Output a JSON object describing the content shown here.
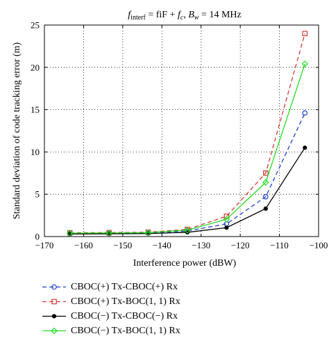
{
  "chart_data": {
    "type": "line",
    "title": "f_interf = fiF + f_c, B_w = 14 MHz",
    "title_parts": {
      "f": "f",
      "interf_sub": "interf",
      "eq1": " = fiF + ",
      "fc": "f",
      "c_sub": "c",
      "comma": ", ",
      "B": "B",
      "w_sub": "w",
      "rest": " = 14 MHz"
    },
    "xlabel": "Interference power (dBW)",
    "ylabel": "Standard deviation of code tracking error (m)",
    "xlim": [
      -170,
      -100
    ],
    "ylim": [
      0,
      25
    ],
    "xticks": [
      -170,
      -160,
      -150,
      -140,
      -130,
      -120,
      -110,
      -100
    ],
    "yticks": [
      0,
      5,
      10,
      15,
      20,
      25
    ],
    "grid": true,
    "legend_position": "below",
    "x": [
      -163.5,
      -153.5,
      -143.5,
      -133.5,
      -123.5,
      -113.5,
      -103.5
    ],
    "series": [
      {
        "name": "CBOC(+) Tx-CBOC(+) Rx",
        "color": "#1f3fd6",
        "line_style": "dashed",
        "marker": "circle",
        "values": [
          0.35,
          0.38,
          0.42,
          0.65,
          1.5,
          4.7,
          14.6
        ]
      },
      {
        "name": "CBOC(+) Tx-BOC(1, 1) Rx",
        "color": "#d43a3a",
        "line_style": "dashed",
        "marker": "square",
        "values": [
          0.45,
          0.47,
          0.52,
          0.85,
          2.4,
          7.5,
          24.0
        ]
      },
      {
        "name": "CBOC(−) Tx-CBOC(−) Rx",
        "color": "#000000",
        "line_style": "solid",
        "marker": "dot",
        "values": [
          0.3,
          0.32,
          0.35,
          0.5,
          1.05,
          3.3,
          10.5
        ]
      },
      {
        "name": "CBOC(−) Tx-BOC(1, 1) Rx",
        "color": "#22dd22",
        "line_style": "solid",
        "marker": "diamond",
        "values": [
          0.4,
          0.42,
          0.46,
          0.75,
          2.05,
          6.4,
          20.4
        ]
      }
    ]
  }
}
